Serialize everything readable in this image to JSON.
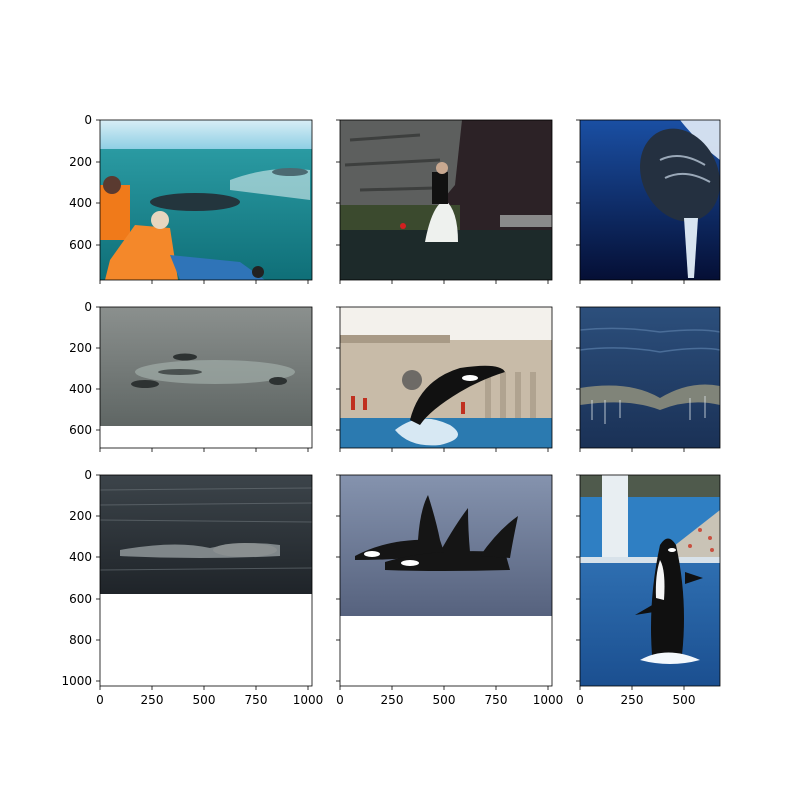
{
  "figure": {
    "background": "#ffffff",
    "layout": {
      "rows": 3,
      "cols": 3,
      "sharex": "col",
      "sharey": "row"
    },
    "panels": [
      {
        "row": 0,
        "col": 0,
        "subject": "whale watchers in orange life vests near a right whale at the sea surface",
        "palette": [
          "#7ec6dd",
          "#1f8a94",
          "#2f4a55",
          "#f07a1a"
        ],
        "x_ticks": [
          "0",
          "250",
          "500",
          "750",
          "1000"
        ],
        "y_ticks": [
          "0",
          "200",
          "400",
          "600"
        ]
      },
      {
        "row": 0,
        "col": 1,
        "subject": "beluga whale rising from a pool beside a trainer in black wetsuit, rock wall background",
        "palette": [
          "#5c5c5c",
          "#1f1f1f",
          "#e8ece8",
          "#2a3a3a"
        ]
      },
      {
        "row": 0,
        "col": 2,
        "subject": "humpback whale underwater seen from below with long white flipper",
        "palette": [
          "#0a1845",
          "#143a8a",
          "#d6e2f2"
        ]
      },
      {
        "row": 1,
        "col": 0,
        "subject": "gray whales surfacing in grey water with white foam",
        "palette": [
          "#7a7f7d",
          "#5b6262",
          "#cfd3d0"
        ],
        "x_ticks": [
          "0",
          "250",
          "500",
          "750",
          "1000"
        ],
        "y_ticks": [
          "0",
          "200",
          "400",
          "600"
        ]
      },
      {
        "row": 1,
        "col": 1,
        "subject": "two orcas leaping from a show pool in front of a stone colonnade",
        "palette": [
          "#f2f0ea",
          "#b8aa98",
          "#0f0f0f",
          "#2b7ab0"
        ]
      },
      {
        "row": 1,
        "col": 2,
        "subject": "whale tail fluke dripping water over deep blue sea",
        "palette": [
          "#1d3a63",
          "#2f5786",
          "#8b8d88"
        ]
      },
      {
        "row": 2,
        "col": 0,
        "subject": "whale back breaking the surface of dark rippled water",
        "palette": [
          "#2b3036",
          "#545c62",
          "#8a8d8e"
        ],
        "x_ticks": [
          "0",
          "250",
          "500",
          "750",
          "1000"
        ],
        "y_ticks": [
          "0",
          "200",
          "400",
          "600",
          "800",
          "1000"
        ]
      },
      {
        "row": 2,
        "col": 1,
        "subject": "pod of orcas with tall dorsal fins swimming in open sea",
        "palette": [
          "#7c8aa8",
          "#5d6b8a",
          "#141414",
          "#ffffff"
        ],
        "x_ticks": [
          "0",
          "250",
          "500",
          "750",
          "1000"
        ]
      },
      {
        "row": 2,
        "col": 2,
        "subject": "orca standing upright out of blue pool water in a marine park stadium",
        "palette": [
          "#2f6fb2",
          "#1d4e8a",
          "#111111",
          "#f5f5f5"
        ],
        "x_ticks": [
          "0",
          "250",
          "500"
        ]
      }
    ]
  }
}
